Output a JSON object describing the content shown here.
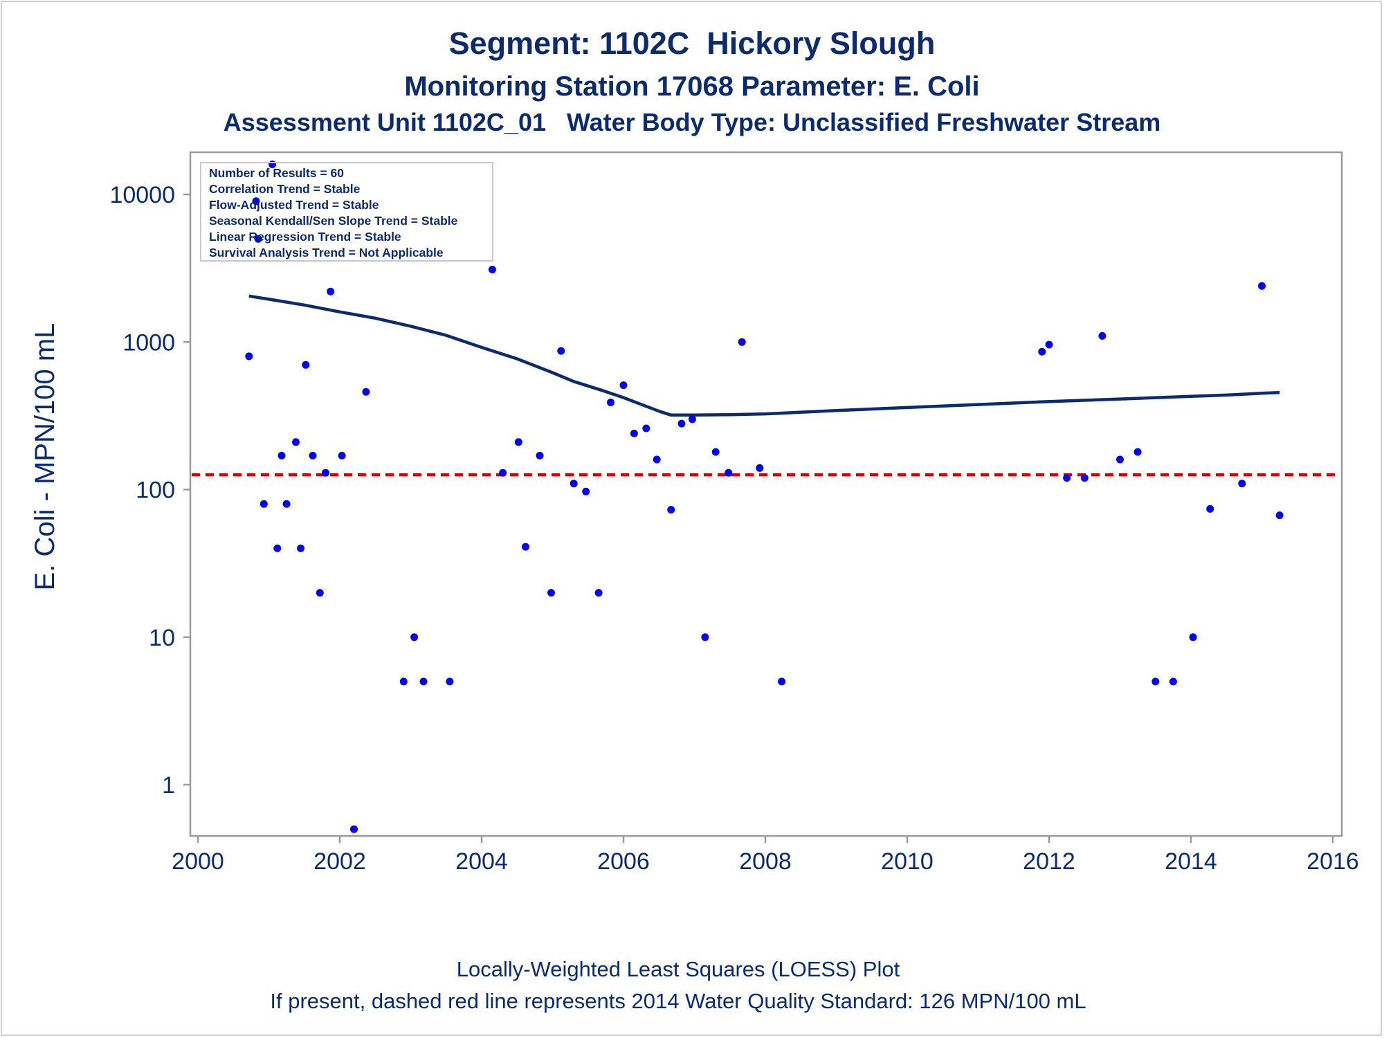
{
  "chart_data": {
    "type": "scatter",
    "title": "Segment: 1102C  Hickory Slough",
    "subtitle": "Monitoring Station 17068 Parameter: E. Coli",
    "subtitle2": "Assessment Unit 1102C_01   Water Body Type: Unclassified Freshwater Stream",
    "xlabel": "",
    "ylabel": "E. Coli - MPN/100 mL",
    "xlim": [
      2000,
      2016
    ],
    "ylim": [
      0.43,
      20000
    ],
    "y_scale": "log",
    "x_ticks": [
      2000,
      2002,
      2004,
      2006,
      2008,
      2010,
      2012,
      2014,
      2016
    ],
    "x_tick_labels": [
      "2000",
      "2002",
      "2004",
      "2006",
      "2008",
      "2010",
      "2012",
      "2014",
      "2016"
    ],
    "y_ticks": [
      1,
      10,
      100,
      1000,
      10000
    ],
    "y_tick_labels": [
      "1",
      "10",
      "100",
      "1000",
      "10000"
    ],
    "grid": false,
    "legend_position": "top-left",
    "info_box": [
      "Number of Results = 60",
      "Correlation Trend = Stable",
      "Flow-Adjusted Trend = Stable",
      "Seasonal Kendall/Sen Slope Trend = Stable",
      "Linear Regression Trend = Stable",
      "Survival Analysis Trend = Not Applicable"
    ],
    "points": [
      [
        2000.72,
        800
      ],
      [
        2000.82,
        9000
      ],
      [
        2000.85,
        5000
      ],
      [
        2000.93,
        80
      ],
      [
        2001.05,
        16000
      ],
      [
        2001.12,
        40
      ],
      [
        2001.18,
        170
      ],
      [
        2001.25,
        80
      ],
      [
        2001.38,
        210
      ],
      [
        2001.45,
        40
      ],
      [
        2001.52,
        700
      ],
      [
        2001.62,
        170
      ],
      [
        2001.72,
        20
      ],
      [
        2001.8,
        130
      ],
      [
        2001.87,
        2200
      ],
      [
        2002.03,
        170
      ],
      [
        2002.2,
        0.5
      ],
      [
        2002.37,
        460
      ],
      [
        2002.9,
        5
      ],
      [
        2003.05,
        10
      ],
      [
        2003.18,
        5
      ],
      [
        2003.55,
        5
      ],
      [
        2004.15,
        3100
      ],
      [
        2004.3,
        130
      ],
      [
        2004.52,
        210
      ],
      [
        2004.62,
        41
      ],
      [
        2004.82,
        170
      ],
      [
        2004.98,
        20
      ],
      [
        2005.12,
        870
      ],
      [
        2005.3,
        110
      ],
      [
        2005.47,
        97
      ],
      [
        2005.65,
        20
      ],
      [
        2005.82,
        390
      ],
      [
        2006.0,
        510
      ],
      [
        2006.15,
        240
      ],
      [
        2006.32,
        260
      ],
      [
        2006.47,
        160
      ],
      [
        2006.67,
        73
      ],
      [
        2006.82,
        280
      ],
      [
        2006.97,
        300
      ],
      [
        2007.15,
        10
      ],
      [
        2007.3,
        180
      ],
      [
        2007.48,
        130
      ],
      [
        2007.67,
        1000
      ],
      [
        2007.92,
        140
      ],
      [
        2008.23,
        5
      ],
      [
        2011.9,
        860
      ],
      [
        2012.0,
        960
      ],
      [
        2012.25,
        120
      ],
      [
        2012.5,
        120
      ],
      [
        2012.75,
        1100
      ],
      [
        2013.0,
        160
      ],
      [
        2013.25,
        180
      ],
      [
        2013.5,
        5
      ],
      [
        2013.75,
        5
      ],
      [
        2014.03,
        10
      ],
      [
        2014.27,
        74
      ],
      [
        2014.72,
        110
      ],
      [
        2015.0,
        2400
      ],
      [
        2015.25,
        67
      ]
    ],
    "series": [
      {
        "type": "line",
        "x": [
          2000.72,
          2001.0,
          2001.5,
          2002.0,
          2002.5,
          2003.0,
          2003.5,
          2004.0,
          2004.5,
          2005.0,
          2005.3,
          2005.7,
          2006.0,
          2006.3,
          2006.5,
          2006.67,
          2007.0,
          2007.5,
          2008.0,
          2009.0,
          2010.0,
          2011.0,
          2012.0,
          2013.0,
          2014.0,
          2014.5,
          2015.0,
          2015.25
        ],
        "values": [
          2050,
          1950,
          1780,
          1600,
          1450,
          1280,
          1110,
          920,
          770,
          620,
          540,
          470,
          420,
          370,
          340,
          320,
          320,
          322,
          326,
          343,
          360,
          377,
          395,
          411,
          428,
          437,
          450,
          455
        ]
      }
    ],
    "reference_line": {
      "value": 126
    },
    "colors": {
      "points": "#0000ff",
      "loess": "#0b2b6e",
      "reference": "#d60000",
      "text": "#0b2b6e",
      "axis": "#9a9a9a"
    }
  },
  "footer": {
    "line1": "Locally-Weighted Least Squares (LOESS) Plot",
    "line2": "If present, dashed red line represents 2014 Water Quality Standard: 126 MPN/100 mL"
  }
}
